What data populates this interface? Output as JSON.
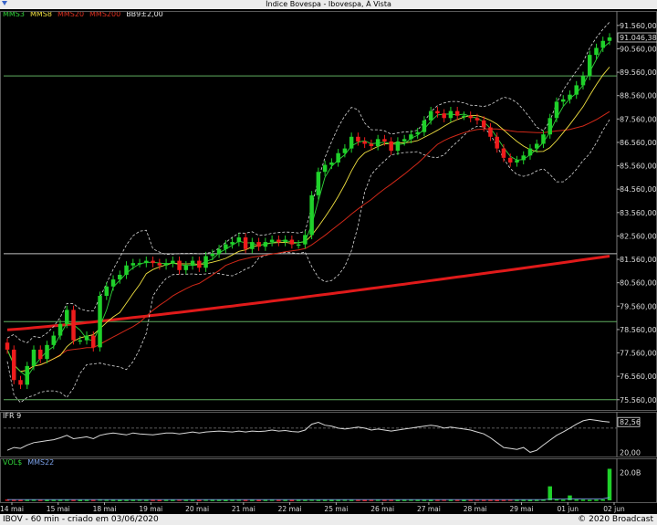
{
  "window": {
    "title": "Índice Bovespa - Ibovespa, À Vista"
  },
  "legend_main": [
    {
      "text": "MMS3",
      "color": "#31d43a"
    },
    {
      "text": "MMS8",
      "color": "#f0e040"
    },
    {
      "text": "MMS20",
      "color": "#e03020"
    },
    {
      "text": "MMS200",
      "color": "#e03020"
    },
    {
      "text": "BB9±2,00",
      "color": "#e6e6e6"
    }
  ],
  "legend_ifr": {
    "text": "IFR 9",
    "color": "#e6e6e6"
  },
  "legend_vol": [
    {
      "text": "VOL$",
      "color": "#31d43a"
    },
    {
      "text": "MMS22",
      "color": "#7aa0e8"
    }
  ],
  "footer": {
    "left": "IBOV - 60 min - criado em 03/06/2020",
    "right": "© 2020 Broadcast"
  },
  "colors": {
    "up": "#1fd12a",
    "down": "#ee1c1c",
    "mms3": "#31d43a",
    "mms8": "#f0e040",
    "mms20": "#d02818",
    "mms200": "#e01a1a",
    "bands": "#d8d8d8",
    "hline_green": "#5fae5f",
    "hline_gray": "#bfbfbf",
    "ifr_line": "#d8d8d8"
  },
  "chart_data": [
    {
      "type": "candlestick",
      "name": "IBOV 60 min",
      "yticks": [
        "91.560,00",
        "90.560,00",
        "89.560,00",
        "88.560,00",
        "87.560,00",
        "86.560,00",
        "85.560,00",
        "84.560,00",
        "83.560,00",
        "82.560,00",
        "81.560,00",
        "80.560,00",
        "79.560,00",
        "78.560,00",
        "77.560,00",
        "76.560,00",
        "75.560,00"
      ],
      "yticks_values": [
        91560,
        90560,
        89560,
        88560,
        87560,
        86560,
        85560,
        84560,
        83560,
        82560,
        81560,
        80560,
        79560,
        78560,
        77560,
        76560,
        75560
      ],
      "ylim": [
        75200,
        92100
      ],
      "last_price_label": "91.046,38",
      "last_price": 91046.38,
      "xticks": [
        "14 mai",
        "15 mai",
        "18 mai",
        "19 mai",
        "20 mai",
        "21 mai",
        "22 mai",
        "25 mai",
        "26 mai",
        "27 mai",
        "28 mai",
        "29 mai",
        "01 jun",
        "02 jun"
      ],
      "xticks_bar_index": [
        0,
        7,
        14,
        21,
        28,
        35,
        42,
        49,
        56,
        63,
        70,
        77,
        84,
        91
      ],
      "horizontal_lines": [
        {
          "value": 89400,
          "style": "green"
        },
        {
          "value": 81800,
          "style": "gray"
        },
        {
          "value": 78900,
          "style": "green"
        },
        {
          "value": 75560,
          "style": "green"
        }
      ],
      "closes": [
        77700,
        76400,
        76200,
        77000,
        77700,
        77300,
        77900,
        78300,
        78800,
        79400,
        78100,
        78100,
        78300,
        77800,
        80000,
        80400,
        80700,
        80900,
        81300,
        81400,
        81400,
        81500,
        81400,
        81300,
        81400,
        81500,
        81100,
        81300,
        81500,
        81200,
        81700,
        81800,
        82000,
        82200,
        82300,
        82500,
        82000,
        82300,
        82100,
        82300,
        82400,
        82300,
        82400,
        82200,
        82200,
        82600,
        84300,
        85300,
        85600,
        85700,
        86100,
        86300,
        86800,
        86600,
        86500,
        86400,
        86700,
        86600,
        86200,
        86600,
        86700,
        86900,
        87000,
        87500,
        87900,
        87800,
        87600,
        87900,
        87700,
        87700,
        87600,
        87500,
        87200,
        86800,
        86300,
        85900,
        85700,
        85800,
        86000,
        86300,
        86500,
        86900,
        87600,
        88300,
        88400,
        88600,
        89000,
        89400,
        90300,
        90600,
        90900,
        91046
      ]
    },
    {
      "type": "line",
      "name": "IFR 9",
      "yticks": [
        "82,56",
        "20,00"
      ],
      "yticks_values": [
        82.56,
        20
      ],
      "ylim": [
        15,
        100
      ],
      "last_value_label": "82,56",
      "reference_line": 70,
      "values": [
        24,
        30,
        28,
        35,
        40,
        42,
        44,
        46,
        50,
        55,
        48,
        50,
        52,
        48,
        55,
        58,
        60,
        58,
        56,
        60,
        58,
        57,
        56,
        58,
        60,
        60,
        58,
        60,
        62,
        60,
        62,
        63,
        64,
        63,
        62,
        64,
        62,
        64,
        63,
        64,
        66,
        64,
        65,
        63,
        62,
        66,
        78,
        82,
        76,
        74,
        70,
        68,
        70,
        72,
        70,
        66,
        68,
        66,
        64,
        66,
        68,
        70,
        72,
        74,
        76,
        74,
        70,
        72,
        70,
        68,
        66,
        62,
        58,
        50,
        40,
        30,
        28,
        26,
        30,
        20,
        24,
        35,
        45,
        55,
        62,
        70,
        78,
        85,
        88,
        86,
        84,
        82.56
      ]
    },
    {
      "type": "bar",
      "name": "VOL$",
      "yticks": [
        "20.0B"
      ],
      "yticks_values": [
        20
      ],
      "ylim": [
        0,
        28
      ],
      "unit": "B",
      "values": [
        0.6,
        0.5,
        0.4,
        0.5,
        0.6,
        0.5,
        0.4,
        0.5,
        0.5,
        0.6,
        0.5,
        0.4,
        0.5,
        0.5,
        0.7,
        0.6,
        0.5,
        0.4,
        0.5,
        0.5,
        0.6,
        0.5,
        0.5,
        0.4,
        0.5,
        0.5,
        0.6,
        0.5,
        0.5,
        0.4,
        0.6,
        0.5,
        0.5,
        0.4,
        0.5,
        0.6,
        0.5,
        0.5,
        0.4,
        0.5,
        0.6,
        0.5,
        0.5,
        0.4,
        0.5,
        0.5,
        0.6,
        0.5,
        0.5,
        0.4,
        0.5,
        0.6,
        0.5,
        0.5,
        0.4,
        0.5,
        0.6,
        0.5,
        0.5,
        0.4,
        0.5,
        0.6,
        0.5,
        0.5,
        0.4,
        0.5,
        0.6,
        0.5,
        0.5,
        0.4,
        0.5,
        0.6,
        0.5,
        0.5,
        0.4,
        0.5,
        0.6,
        0.5,
        0.5,
        0.4,
        0.5,
        0.6,
        10.0,
        0.8,
        0.5,
        3.5,
        0.6,
        0.5,
        0.4,
        0.5,
        0.6,
        22.5
      ],
      "ma_values": [
        0.5,
        0.5,
        0.5,
        0.5,
        0.5,
        0.5,
        0.5,
        0.5,
        0.5,
        0.5,
        0.5,
        0.5,
        0.5,
        0.5,
        0.5,
        0.5,
        0.5,
        0.5,
        0.5,
        0.5,
        0.5,
        0.5,
        0.5,
        0.5,
        0.5,
        0.5,
        0.5,
        0.5,
        0.5,
        0.5,
        0.5,
        0.5,
        0.5,
        0.5,
        0.5,
        0.5,
        0.5,
        0.5,
        0.5,
        0.5,
        0.5,
        0.5,
        0.5,
        0.5,
        0.5,
        0.5,
        0.5,
        0.5,
        0.5,
        0.5,
        0.5,
        0.5,
        0.5,
        0.5,
        0.5,
        0.5,
        0.5,
        0.5,
        0.5,
        0.5,
        0.5,
        0.5,
        0.5,
        0.5,
        0.5,
        0.5,
        0.5,
        0.5,
        0.5,
        0.5,
        0.5,
        0.5,
        0.5,
        0.5,
        0.5,
        0.5,
        0.5,
        0.5,
        0.5,
        0.5,
        0.5,
        0.5,
        0.9,
        0.9,
        0.9,
        1.1,
        1.1,
        1.1,
        1.1,
        1.1,
        1.1,
        2.1
      ]
    }
  ]
}
